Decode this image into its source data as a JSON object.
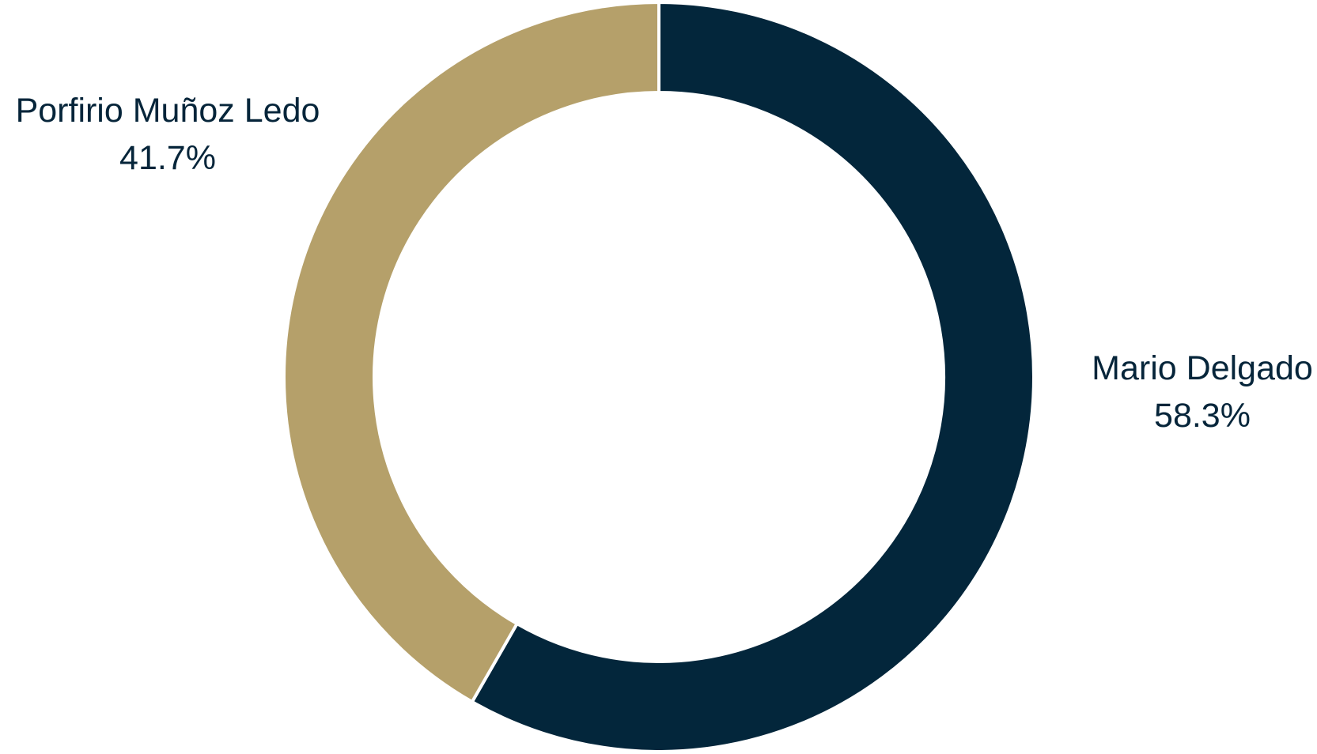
{
  "chart_data": {
    "type": "pie",
    "variant": "donut",
    "title": "",
    "slices": [
      {
        "label": "Mario Delgado",
        "value": 58.3,
        "value_label": "58.3%",
        "color": "#03263b"
      },
      {
        "label": "Porfirio Muñoz Ledo",
        "value": 41.7,
        "value_label": "41.7%",
        "color": "#b5a06a"
      }
    ],
    "start_angle": "12 o'clock",
    "direction": "clockwise",
    "legend": "none",
    "slice_separator_color": "#ffffff"
  }
}
